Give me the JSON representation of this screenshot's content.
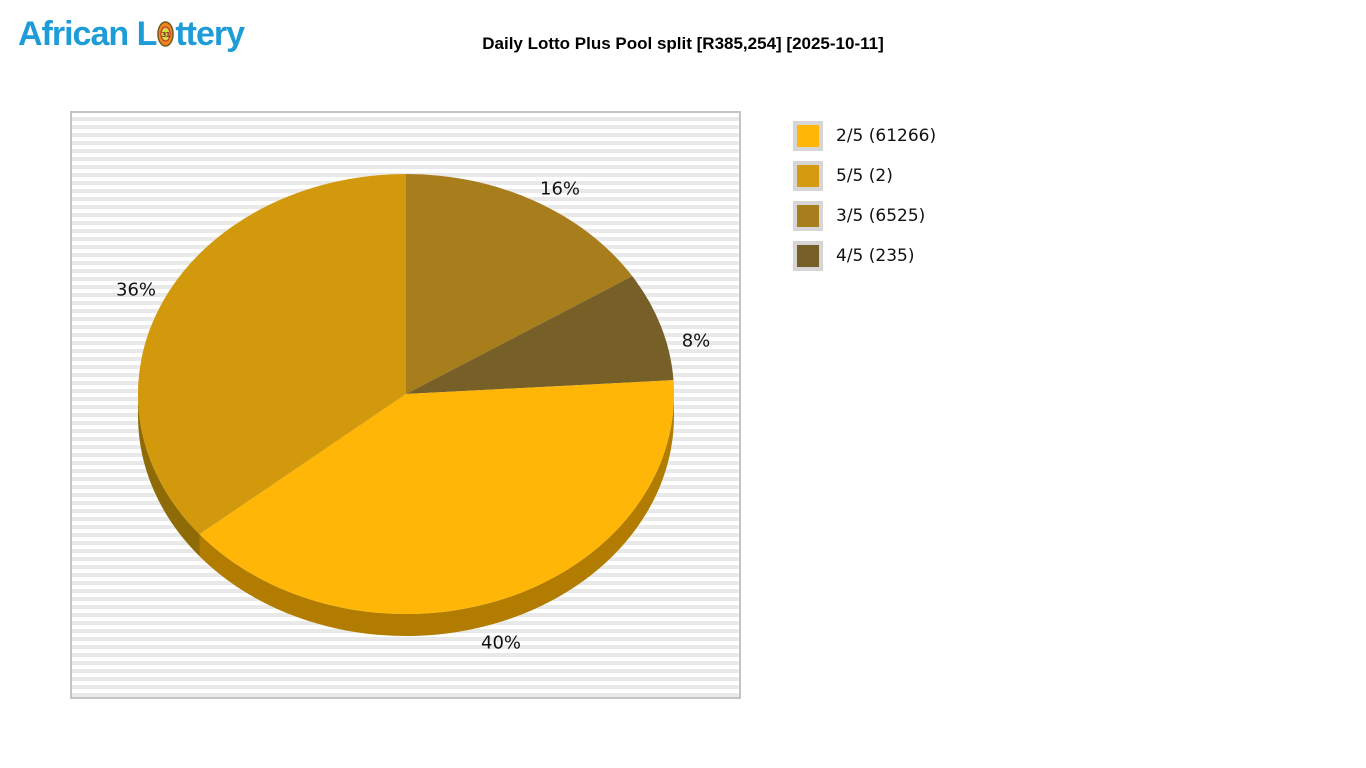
{
  "logo": {
    "part1": "African L",
    "part2": "ttery",
    "ball_number": "31",
    "color": "#1E9CD8"
  },
  "title": "Daily Lotto Plus Pool split [R385,254] [2025-10-11]",
  "chart_data": {
    "type": "pie",
    "title": "Daily Lotto Plus Pool split [R385,254] [2025-10-11]",
    "pool_total_label": "R385,254",
    "date_label": "2025-10-11",
    "direction": "clockwise",
    "start_angle_deg_from_top": 0,
    "effect": "3d",
    "slices": [
      {
        "label": "3/5",
        "winners": 6525,
        "percent": 16,
        "percent_label": "16%",
        "color": "#A87E1C",
        "side_color": "#7A5C14"
      },
      {
        "label": "4/5",
        "winners": 235,
        "percent": 8,
        "percent_label": "8%",
        "color": "#776027",
        "side_color": "#55451C"
      },
      {
        "label": "2/5",
        "winners": 61266,
        "percent": 40,
        "percent_label": "40%",
        "color": "#FFB606",
        "side_color": "#B17C00"
      },
      {
        "label": "5/5",
        "winners": 2,
        "percent": 36,
        "percent_label": "36%",
        "color": "#D2990D",
        "side_color": "#8E6B06"
      }
    ],
    "legend_position": "right",
    "background_stripes": [
      "#FFFFFF",
      "#E9E9E9"
    ]
  },
  "legend": {
    "items": [
      {
        "label": "2/5 (61266)",
        "color": "#FFB606"
      },
      {
        "label": "5/5 (2)",
        "color": "#D49B10"
      },
      {
        "label": "3/5 (6525)",
        "color": "#A87E1C"
      },
      {
        "label": "4/5 (235)",
        "color": "#776027"
      }
    ]
  }
}
